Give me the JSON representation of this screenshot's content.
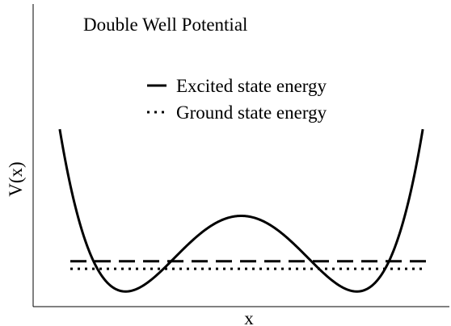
{
  "title": "Double Well Potential",
  "xlabel": "x",
  "ylabel": "V(x)",
  "legend": [
    {
      "label": "Excited state energy",
      "style": "dashed"
    },
    {
      "label": "Ground state energy",
      "style": "dotted"
    }
  ],
  "colors": {
    "line": "#000000",
    "background": "#ffffff"
  },
  "chart_data": {
    "type": "line",
    "title": "Double Well Potential",
    "xlabel": "x",
    "ylabel": "V(x)",
    "xlim": [
      -1.8,
      1.8
    ],
    "ylim": [
      -1.2,
      2.8
    ],
    "series": [
      {
        "name": "",
        "kind": "potential",
        "formula": "V(x) = (x^2 - 1)^2 - 1",
        "x_range": [
          -1.57,
          1.57
        ]
      },
      {
        "name": "Excited state energy",
        "kind": "level",
        "value": -0.6,
        "style": "dashed"
      },
      {
        "name": "Ground state energy",
        "kind": "level",
        "value": -0.7,
        "style": "dotted"
      }
    ],
    "grid": false,
    "legend_position": "top-right"
  }
}
